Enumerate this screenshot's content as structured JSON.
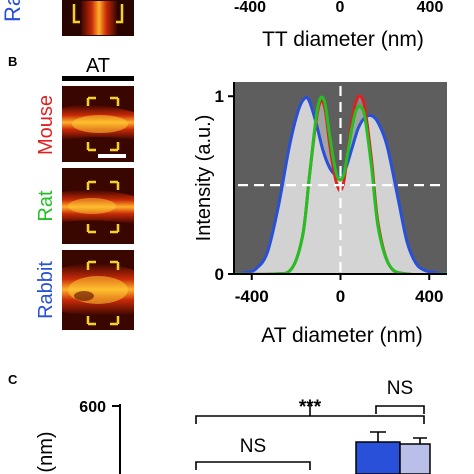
{
  "figure": {
    "panel_b_letter": "B",
    "panel_c_letter": "C",
    "top_partial_species": "Ra",
    "top_x_ticks": [
      "-400",
      "0",
      "400"
    ],
    "top_x_label": "TT diameter (nm)",
    "at_label": "AT",
    "species": [
      {
        "name": "Mouse",
        "color": "#e02020"
      },
      {
        "name": "Rat",
        "color": "#22c022"
      },
      {
        "name": "Rabbit",
        "color": "#2850d8"
      }
    ],
    "bracket_color": "#f5d21e"
  },
  "chart_data": [
    {
      "type": "area",
      "xlabel": "AT diameter (nm)",
      "ylabel": "Intensity (a.u.)",
      "xlim": [
        -480,
        480
      ],
      "ylim": [
        0,
        1.08
      ],
      "x_ticks": [
        "-400",
        "0",
        "400"
      ],
      "y_ticks": [
        "0",
        "1"
      ],
      "reference_lines": {
        "y": 0.5,
        "x": 0
      },
      "background": "#5e5e5e",
      "series": [
        {
          "name": "Rabbit",
          "color": "#2850d8",
          "x": [
            -480,
            -420,
            -380,
            -330,
            -280,
            -230,
            -190,
            -160,
            -140,
            -110,
            -80,
            -50,
            -25,
            0,
            25,
            50,
            80,
            110,
            140,
            170,
            210,
            260,
            300,
            340,
            380,
            420,
            480
          ],
          "y": [
            0.0,
            0.01,
            0.03,
            0.12,
            0.38,
            0.72,
            0.92,
            0.99,
            0.97,
            0.85,
            0.7,
            0.6,
            0.56,
            0.56,
            0.6,
            0.7,
            0.82,
            0.88,
            0.89,
            0.85,
            0.72,
            0.42,
            0.18,
            0.06,
            0.02,
            0.01,
            0.0
          ]
        },
        {
          "name": "Mouse",
          "color": "#e02020",
          "x": [
            -480,
            -300,
            -220,
            -170,
            -140,
            -110,
            -90,
            -70,
            -50,
            -30,
            -15,
            0,
            15,
            30,
            50,
            70,
            90,
            110,
            140,
            170,
            220,
            300,
            480
          ],
          "y": [
            0.0,
            0.0,
            0.03,
            0.22,
            0.55,
            0.86,
            0.97,
            0.93,
            0.74,
            0.58,
            0.5,
            0.47,
            0.52,
            0.66,
            0.85,
            0.97,
            1.0,
            0.93,
            0.64,
            0.28,
            0.05,
            0.0,
            0.0
          ]
        },
        {
          "name": "Rat",
          "color": "#22c022",
          "x": [
            -480,
            -300,
            -220,
            -170,
            -140,
            -110,
            -90,
            -70,
            -50,
            -30,
            -15,
            0,
            15,
            30,
            50,
            70,
            90,
            110,
            140,
            170,
            220,
            300,
            480
          ],
          "y": [
            0.0,
            0.0,
            0.03,
            0.22,
            0.55,
            0.88,
            0.99,
            0.96,
            0.79,
            0.63,
            0.55,
            0.53,
            0.56,
            0.66,
            0.81,
            0.92,
            0.94,
            0.88,
            0.6,
            0.26,
            0.05,
            0.0,
            0.0
          ]
        }
      ]
    },
    {
      "type": "bar",
      "ylabel": "(nm)",
      "y_ticks": [
        "600"
      ],
      "significance": [
        "***",
        "NS",
        "NS"
      ],
      "series": [
        {
          "name": "bar-1",
          "color": "#2850d8"
        },
        {
          "name": "bar-2",
          "color": "#b9bfe8"
        }
      ]
    }
  ]
}
